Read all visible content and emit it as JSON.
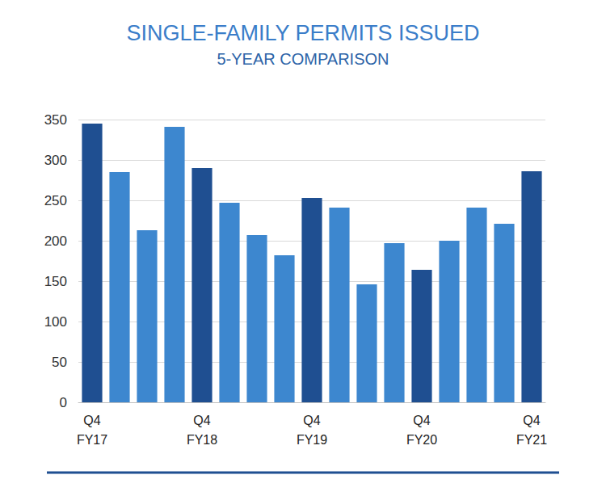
{
  "chart_data": {
    "type": "bar",
    "title": "SINGLE-FAMILY PERMITS ISSUED",
    "subtitle": "5-YEAR COMPARISON",
    "categories": [
      "Q4\nFY17",
      null,
      null,
      null,
      "Q4\nFY18",
      null,
      null,
      null,
      "Q4\nFY19",
      null,
      null,
      null,
      "Q4\nFY20",
      null,
      null,
      null,
      "Q4\nFY21"
    ],
    "values": [
      345,
      285,
      213,
      341,
      290,
      247,
      207,
      182,
      253,
      241,
      146,
      197,
      164,
      200,
      241,
      221,
      286
    ],
    "colors": [
      "#1f4f91",
      "#3d87cf",
      "#3d87cf",
      "#3d87cf",
      "#1f4f91",
      "#3d87cf",
      "#3d87cf",
      "#3d87cf",
      "#1f4f91",
      "#3d87cf",
      "#3d87cf",
      "#3d87cf",
      "#1f4f91",
      "#3d87cf",
      "#3d87cf",
      "#3d87cf",
      "#1f4f91"
    ],
    "ylim": [
      0,
      350
    ],
    "yticks": [
      0,
      50,
      100,
      150,
      200,
      250,
      300,
      350
    ],
    "grid": true
  }
}
